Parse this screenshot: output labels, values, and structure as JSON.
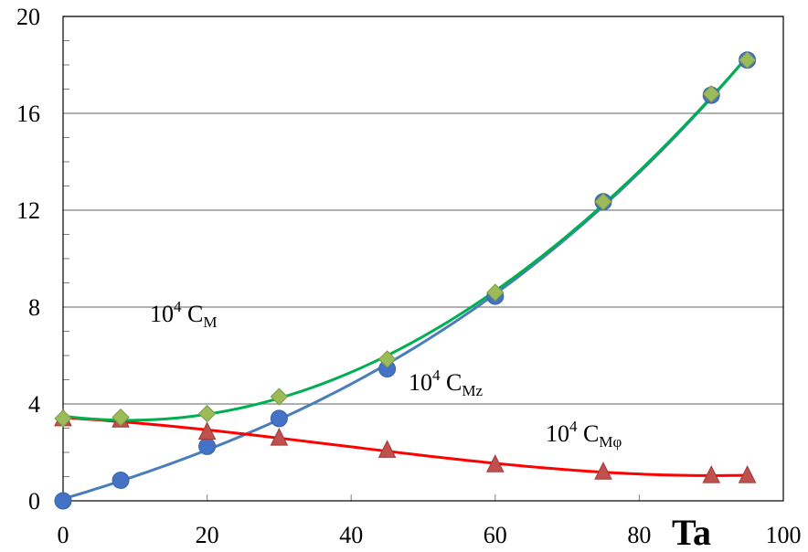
{
  "chart_data": {
    "type": "scatter",
    "xlabel": "Ta",
    "ylabel": "",
    "xlim": [
      0,
      100
    ],
    "ylim": [
      0,
      20
    ],
    "x_ticks": [
      "0",
      "20",
      "40",
      "60",
      "80",
      "100"
    ],
    "y_ticks": [
      "0",
      "4",
      "8",
      "12",
      "16",
      "20"
    ],
    "grid": "horizontal",
    "series": [
      {
        "label_base": "10",
        "label_sup": "4",
        "label_main": " C",
        "label_sub": "Mz",
        "marker": "circle",
        "marker_color": "#4472C4",
        "line_color": "#4A7EBB",
        "x": [
          0,
          8,
          20,
          30,
          45,
          60,
          75,
          90,
          95
        ],
        "y": [
          0,
          0.85,
          2.25,
          3.4,
          5.45,
          8.45,
          12.35,
          16.75,
          18.2
        ]
      },
      {
        "label_base": "10",
        "label_sup": "4",
        "label_main": " C",
        "label_sub": "Mφ",
        "marker": "triangle",
        "marker_color": "#C0504D",
        "line_color": "#FF0000",
        "x": [
          0,
          8,
          20,
          30,
          45,
          60,
          75,
          90,
          95
        ],
        "y": [
          3.4,
          3.35,
          2.85,
          2.6,
          2.1,
          1.5,
          1.2,
          1.05,
          1.05
        ]
      },
      {
        "label_base": "10",
        "label_sup": "4",
        "label_main": " C",
        "label_sub": "M",
        "marker": "diamond",
        "marker_color": "#9BBB59",
        "line_color": "#00B050",
        "x": [
          0,
          8,
          20,
          30,
          45,
          60,
          75,
          90,
          95
        ],
        "y": [
          3.4,
          3.45,
          3.6,
          4.3,
          5.85,
          8.6,
          12.35,
          16.8,
          18.2
        ]
      }
    ]
  }
}
